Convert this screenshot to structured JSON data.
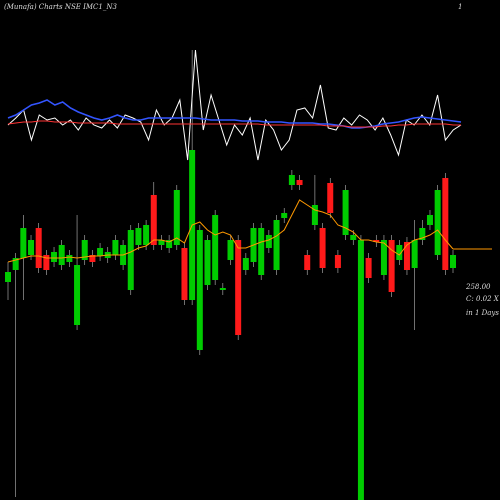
{
  "chart_data": [
    {
      "type": "candlestick",
      "title": "(Munafa) Charts NSE IMC1_N3",
      "annotations": [
        "1",
        "258.00",
        "C: 0.02 X",
        "in 1 Days"
      ],
      "up_color": "#00cc00",
      "down_color": "#ff1a1a",
      "ma_color": "#ff9900",
      "ylim": [
        7,
        507
      ],
      "open": [
        225,
        237,
        249,
        252,
        279,
        252,
        245,
        242,
        245,
        182,
        247,
        252,
        251,
        249,
        252,
        242,
        217,
        262,
        262,
        312,
        262,
        259,
        262,
        259,
        207,
        157,
        222,
        227,
        217,
        247,
        267,
        237,
        245,
        232,
        259,
        237,
        289,
        322,
        327,
        252,
        282,
        279,
        324,
        252,
        272,
        267,
        7,
        249,
        267,
        232,
        267,
        247,
        265,
        239,
        267,
        282,
        252,
        329,
        239
      ],
      "high": [
        245,
        254,
        292,
        272,
        284,
        257,
        260,
        267,
        257,
        292,
        272,
        257,
        264,
        260,
        272,
        267,
        282,
        284,
        287,
        325,
        272,
        272,
        322,
        264,
        457,
        282,
        272,
        297,
        224,
        272,
        272,
        254,
        284,
        284,
        277,
        292,
        299,
        337,
        332,
        257,
        332,
        284,
        329,
        257,
        322,
        277,
        272,
        254,
        272,
        272,
        272,
        267,
        270,
        287,
        287,
        297,
        322,
        334,
        257
      ],
      "low": [
        207,
        10,
        207,
        247,
        234,
        232,
        240,
        237,
        240,
        177,
        242,
        240,
        246,
        244,
        247,
        237,
        212,
        257,
        257,
        257,
        257,
        254,
        257,
        202,
        202,
        152,
        217,
        222,
        212,
        242,
        167,
        232,
        240,
        227,
        254,
        232,
        284,
        317,
        317,
        232,
        277,
        234,
        289,
        234,
        267,
        262,
        7,
        224,
        260,
        227,
        210,
        242,
        232,
        177,
        262,
        277,
        247,
        232,
        234
      ],
      "close": [
        235,
        249,
        279,
        267,
        239,
        237,
        255,
        262,
        252,
        242,
        267,
        245,
        259,
        255,
        267,
        262,
        277,
        279,
        282,
        262,
        267,
        267,
        317,
        207,
        357,
        277,
        267,
        292,
        219,
        267,
        172,
        249,
        279,
        279,
        272,
        287,
        294,
        332,
        322,
        237,
        302,
        239,
        294,
        239,
        317,
        272,
        267,
        229,
        265,
        267,
        215,
        262,
        237,
        267,
        279,
        292,
        317,
        237,
        252
      ],
      "ma": [
        245,
        247,
        249,
        251,
        251,
        249,
        249,
        249,
        250,
        249,
        250,
        251,
        251,
        252,
        252,
        252,
        255,
        259,
        261,
        267,
        267,
        265,
        269,
        264,
        282,
        285,
        277,
        272,
        275,
        272,
        259,
        259,
        262,
        265,
        267,
        271,
        277,
        292,
        307,
        302,
        297,
        295,
        292,
        282,
        279,
        275,
        267,
        267,
        265,
        264,
        257,
        252,
        262,
        267,
        269,
        272,
        277,
        267,
        258
      ]
    },
    {
      "type": "line",
      "ylim": [
        0,
        110
      ],
      "series": [
        {
          "name": "white",
          "color": "#ffffff",
          "values": [
            35,
            42,
            50,
            20,
            45,
            40,
            42,
            35,
            40,
            30,
            42,
            35,
            32,
            40,
            32,
            45,
            42,
            38,
            20,
            50,
            35,
            42,
            60,
            0,
            110,
            30,
            65,
            40,
            15,
            35,
            25,
            42,
            0,
            40,
            30,
            10,
            20,
            50,
            52,
            42,
            75,
            32,
            30,
            42,
            35,
            45,
            40,
            30,
            42,
            25,
            5,
            40,
            35,
            45,
            35,
            65,
            20,
            30,
            35
          ]
        },
        {
          "name": "blue",
          "color": "#3355ff",
          "values": [
            42,
            45,
            50,
            55,
            57,
            60,
            55,
            58,
            52,
            48,
            45,
            42,
            40,
            42,
            45,
            42,
            40,
            40,
            42,
            42,
            42,
            42,
            42,
            42,
            42,
            41,
            40,
            40,
            40,
            40,
            39,
            39,
            39,
            38,
            38,
            38,
            37,
            37,
            37,
            37,
            36,
            36,
            35,
            34,
            32,
            32,
            33,
            34,
            36,
            37,
            38,
            40,
            42,
            43,
            42,
            41,
            40,
            39,
            38
          ]
        },
        {
          "name": "red",
          "color": "#ff3333",
          "values": [
            36,
            37,
            38,
            38,
            39,
            39,
            38,
            38,
            38,
            37,
            37,
            37,
            37,
            37,
            36,
            36,
            36,
            36,
            36,
            36,
            36,
            36,
            36,
            36,
            36,
            36,
            36,
            36,
            36,
            36,
            36,
            36,
            36,
            35,
            35,
            35,
            35,
            35,
            35,
            35,
            35,
            34,
            34,
            34,
            33,
            33,
            33,
            33,
            34,
            34,
            35,
            35,
            36,
            36,
            36,
            36,
            36,
            35,
            35
          ]
        }
      ]
    }
  ]
}
